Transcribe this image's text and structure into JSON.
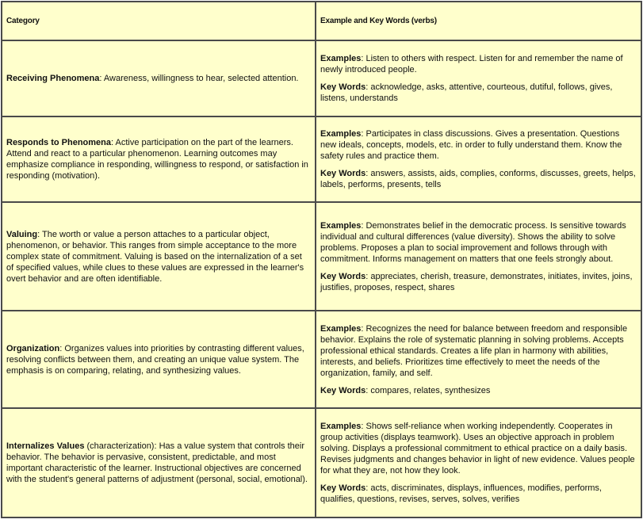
{
  "header": {
    "category": "Category",
    "examples": "Example and Key Words (verbs)"
  },
  "rows": [
    {
      "name": "Receiving Phenomena",
      "name_suffix": "",
      "description": ": Awareness, willingness to hear, selected attention.",
      "examples_label": "Examples",
      "examples": ": Listen to others with respect. Listen for and remember the name of newly introduced people.",
      "keywords_label": "Key Words",
      "keywords": ": acknowledge, asks, attentive, courteous, dutiful, follows, gives, listens, understands"
    },
    {
      "name": "Responds to Phenomena",
      "name_suffix": "",
      "description": ": Active participation on the part of the learners. Attend and react to a particular phenomenon. Learning outcomes may emphasize compliance in responding, willingness to respond, or satisfaction in responding (motivation).",
      "examples_label": "Examples",
      "examples": ": Participates in class discussions. Gives a presentation. Questions new ideals, concepts, models, etc. in order to fully understand them. Know the safety rules and practice them.",
      "keywords_label": "Key Words",
      "keywords": ": answers, assists, aids, complies, conforms, discusses, greets, helps, labels, performs, presents, tells"
    },
    {
      "name": "Valuing",
      "name_suffix": "",
      "description": ": The worth or value a person attaches to a particular object, phenomenon, or behavior. This ranges from simple acceptance to the more complex state of commitment. Valuing is based on the internalization of a set of specified values, while clues to these values are expressed in the learner's overt behavior and are often identifiable.",
      "examples_label": "Examples",
      "examples": ": Demonstrates belief in the democratic process. Is sensitive towards individual and cultural differences (value diversity). Shows the ability to solve problems. Proposes a plan to social improvement and follows through with commitment. Informs management on matters that one feels strongly about.",
      "keywords_label": "Key Words",
      "keywords": ": appreciates, cherish, treasure, demonstrates, initiates, invites, joins, justifies, proposes, respect, shares"
    },
    {
      "name": "Organization",
      "name_suffix": "",
      "description": ": Organizes values into priorities by contrasting different values, resolving conflicts between them, and creating an unique value system. The emphasis is on comparing, relating, and synthesizing values.",
      "examples_label": "Examples",
      "examples": ": Recognizes the need for balance between freedom and responsible behavior. Explains the role of systematic planning in solving problems. Accepts professional ethical standards. Creates a life plan in harmony with abilities, interests, and beliefs. Prioritizes time effectively to meet the needs of the organization, family, and self.",
      "keywords_label": "Key Words",
      "keywords": ": compares, relates, synthesizes"
    },
    {
      "name": "Internalizes Values",
      "name_suffix": " (characterization)",
      "description": ": Has a value system that controls their behavior. The behavior is pervasive, consistent, predictable, and most important characteristic of the learner. Instructional objectives are concerned with the student's general patterns of adjustment (personal, social, emotional).",
      "examples_label": "Examples",
      "examples": ": Shows self-reliance when working independently. Cooperates in group activities (displays teamwork). Uses an objective approach in problem solving. Displays a professional commitment to ethical  practice on a daily basis. Revises judgments and changes behavior in light of new evidence. Values people for what they are, not how they look.",
      "keywords_label": "Key Words",
      "keywords": ": acts, discriminates, displays, influences, modifies, performs, qualifies, questions, revises, serves, solves, verifies"
    }
  ]
}
